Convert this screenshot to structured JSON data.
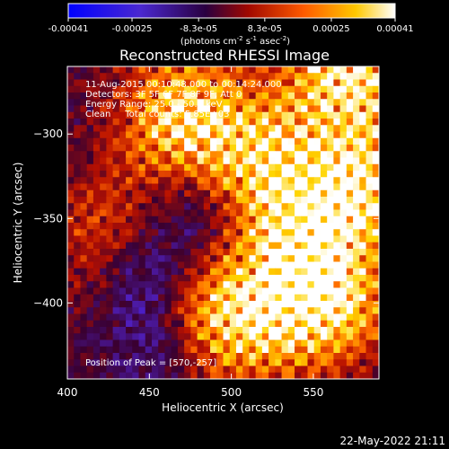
{
  "chart_data": {
    "type": "heatmap",
    "title": "Reconstructed RHESSI Image",
    "xlabel": "Heliocentric X (arcsec)",
    "ylabel": "Heliocentric Y (arcsec)",
    "xlim": [
      400,
      590
    ],
    "ylim": [
      -445,
      -260
    ],
    "x_ticks": [
      400,
      450,
      500,
      550
    ],
    "y_ticks": [
      -300,
      -350,
      -400
    ],
    "colorbar": {
      "label_base": "(photons cm",
      "label_exp1": "-2",
      "label_mid1": " s",
      "label_exp2": "-1",
      "label_mid2": " asec",
      "label_exp3": "-2",
      "label_end": ")",
      "range": [
        -0.00041,
        0.00041
      ],
      "tick_values": [
        -0.00041,
        -0.00025,
        -8.3e-05,
        8.3e-05,
        0.00025,
        0.00041
      ],
      "tick_labels": [
        "-0.00041",
        "-0.00025",
        "-8.3e-05",
        "8.3e-05",
        "0.00025",
        "0.00041"
      ]
    },
    "annotations": [
      "11-Aug-2015 00:10:48.000 to 00:14:24.000",
      "Detectors: 3F 5F 6F 7F 8F 9F, Att 0",
      "Energy Range: 25.0 - 50.0 keV",
      "Clean     Total counts: 5.85E+03"
    ],
    "peak_label": "Position of Peak = [570,-257]",
    "peak": [
      570,
      -257
    ],
    "colormap": [
      "#0000ff",
      "#5020c0",
      "#3a0030",
      "#b81000",
      "#ff6a00",
      "#ffd500",
      "#ffffff"
    ],
    "bright_regions": [
      {
        "x": 572,
        "y": -260,
        "strength": 1.0
      },
      {
        "x": 580,
        "y": -330,
        "strength": 0.9
      },
      {
        "x": 470,
        "y": -290,
        "strength": 0.85
      },
      {
        "x": 500,
        "y": -410,
        "strength": 0.85
      },
      {
        "x": 555,
        "y": -400,
        "strength": 0.95
      },
      {
        "x": 520,
        "y": -315,
        "strength": 0.7
      },
      {
        "x": 425,
        "y": -360,
        "strength": 0.4
      },
      {
        "x": 540,
        "y": -360,
        "strength": 0.6
      }
    ],
    "dim_regions": [
      {
        "x": 445,
        "y": -380,
        "strength": 1.0
      },
      {
        "x": 480,
        "y": -345,
        "strength": 0.8
      },
      {
        "x": 460,
        "y": -425,
        "strength": 0.7
      }
    ]
  },
  "footer": {
    "date": "22-May-2022 21:11"
  }
}
